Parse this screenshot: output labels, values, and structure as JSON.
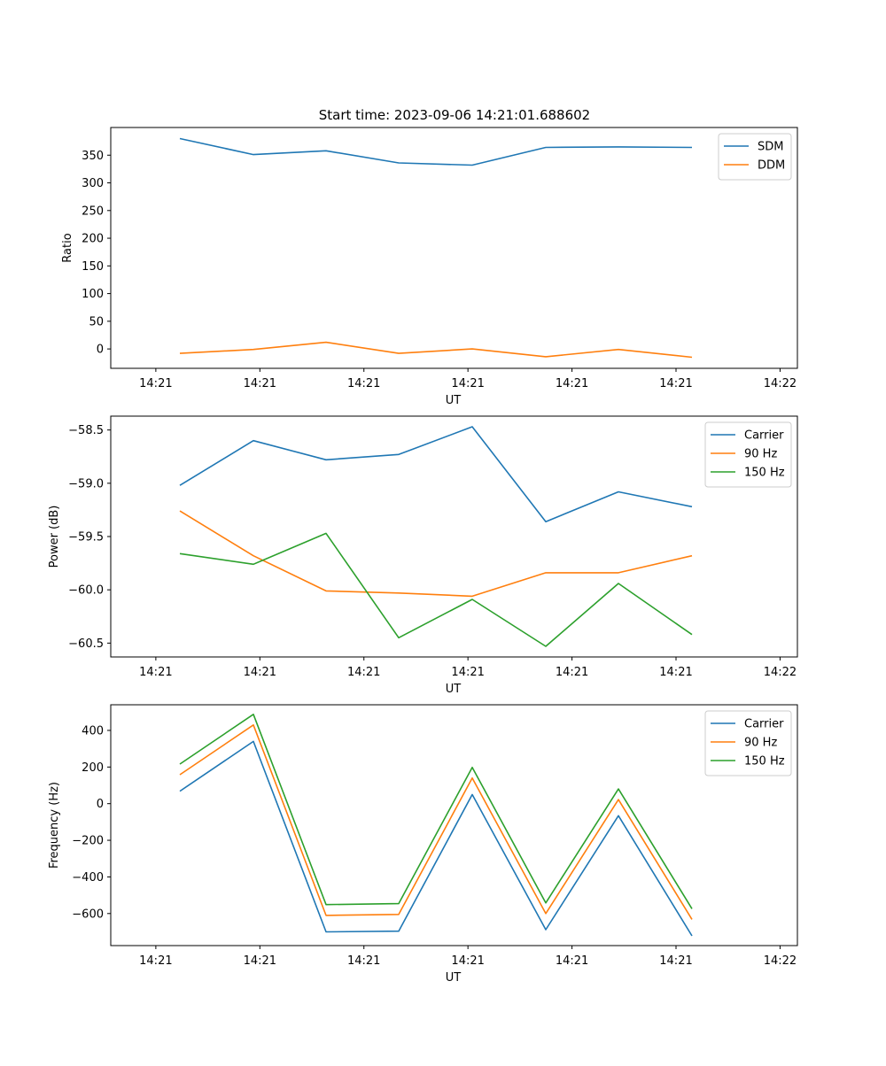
{
  "figure_title": "Start time: 2023-09-06 14:21:01.688602",
  "colors": {
    "series1": "#1f77b4",
    "series2": "#ff7f0e",
    "series3": "#2ca02c",
    "axis": "#000000"
  },
  "chart_data": [
    {
      "type": "line",
      "title": "Start time: 2023-09-06 14:21:01.688602",
      "xlabel": "UT",
      "ylabel": "Ratio",
      "x_tick_labels": [
        "14:21",
        "14:21",
        "14:21",
        "14:21",
        "14:21",
        "14:21",
        "14:22"
      ],
      "x": [
        1,
        2,
        3,
        4,
        5,
        6,
        7,
        8
      ],
      "xlim": [
        0.2,
        9.2
      ],
      "ylim": [
        -35,
        400
      ],
      "y_ticks": [
        0,
        50,
        100,
        150,
        200,
        250,
        300,
        350
      ],
      "legend": "top-right",
      "series": [
        {
          "name": "SDM",
          "color": "#1f77b4",
          "values": [
            380,
            351,
            358,
            336,
            332,
            364,
            365,
            364
          ]
        },
        {
          "name": "DDM",
          "color": "#ff7f0e",
          "values": [
            -8,
            -1,
            12,
            -8,
            0,
            -14,
            -1,
            -15
          ]
        }
      ]
    },
    {
      "type": "line",
      "title": "",
      "xlabel": "UT",
      "ylabel": "Power (dB)",
      "x_tick_labels": [
        "14:21",
        "14:21",
        "14:21",
        "14:21",
        "14:21",
        "14:21",
        "14:22"
      ],
      "x": [
        1,
        2,
        3,
        4,
        5,
        6,
        7,
        8
      ],
      "xlim": [
        0.2,
        9.2
      ],
      "ylim": [
        -60.63,
        -58.37
      ],
      "y_ticks": [
        -60.5,
        -60.0,
        -59.5,
        -59.0,
        -58.5
      ],
      "y_tick_labels": [
        "−60.5",
        "−60.0",
        "−59.5",
        "−59.0",
        "−58.5"
      ],
      "legend": "top-right",
      "series": [
        {
          "name": "Carrier",
          "color": "#1f77b4",
          "values": [
            -59.02,
            -58.6,
            -58.78,
            -58.73,
            -58.47,
            -59.36,
            -59.08,
            -59.22
          ]
        },
        {
          "name": "90 Hz",
          "color": "#ff7f0e",
          "values": [
            -59.26,
            -59.68,
            -60.01,
            -60.03,
            -60.06,
            -59.84,
            -59.84,
            -59.68
          ]
        },
        {
          "name": "150 Hz",
          "color": "#2ca02c",
          "values": [
            -59.66,
            -59.76,
            -59.47,
            -60.45,
            -60.09,
            -60.53,
            -59.94,
            -60.42
          ]
        }
      ]
    },
    {
      "type": "line",
      "title": "",
      "xlabel": "UT",
      "ylabel": "Frequency (Hz)",
      "x_tick_labels": [
        "14:21",
        "14:21",
        "14:21",
        "14:21",
        "14:21",
        "14:21",
        "14:22"
      ],
      "x": [
        1,
        2,
        3,
        4,
        5,
        6,
        7,
        8
      ],
      "xlim": [
        0.2,
        9.2
      ],
      "ylim": [
        -775,
        540
      ],
      "y_ticks": [
        -600,
        -400,
        -200,
        0,
        200,
        400
      ],
      "y_tick_labels": [
        "−600",
        "−400",
        "−200",
        "0",
        "200",
        "400"
      ],
      "legend": "top-right",
      "series": [
        {
          "name": "Carrier",
          "color": "#1f77b4",
          "values": [
            68,
            340,
            -700,
            -696,
            50,
            -688,
            -66,
            -722
          ]
        },
        {
          "name": "90 Hz",
          "color": "#ff7f0e",
          "values": [
            158,
            430,
            -610,
            -605,
            140,
            -600,
            22,
            -632
          ]
        },
        {
          "name": "150 Hz",
          "color": "#2ca02c",
          "values": [
            216,
            488,
            -551,
            -546,
            198,
            -542,
            80,
            -574
          ]
        }
      ]
    }
  ]
}
